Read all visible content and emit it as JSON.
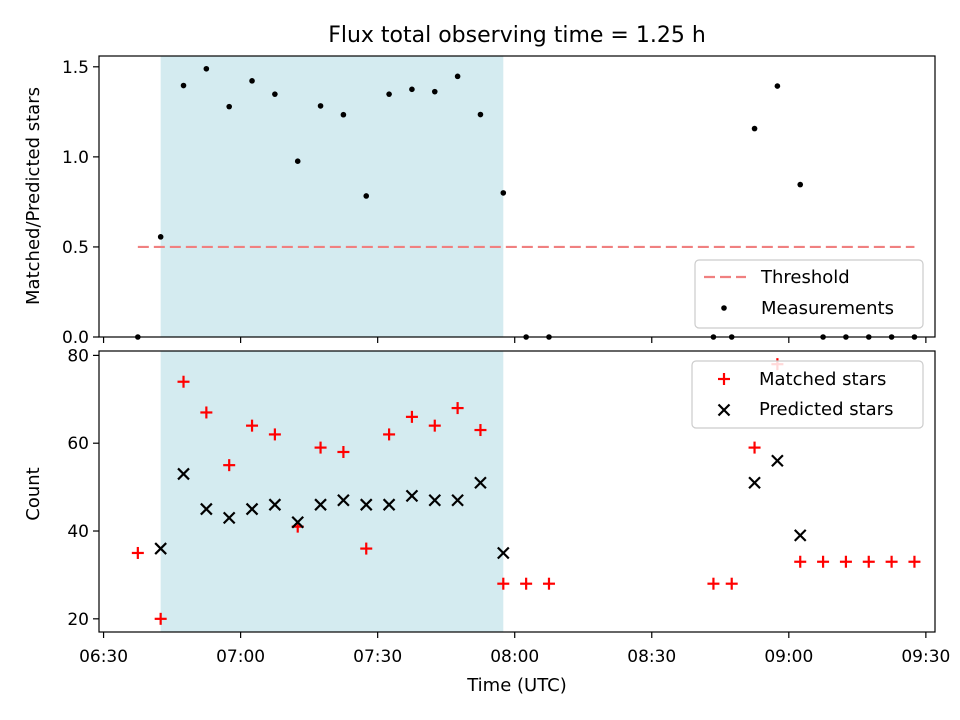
{
  "chart_data": [
    {
      "type": "scatter",
      "title": "Flux total observing time = 1.25 h",
      "xlabel": "",
      "ylabel": "Matched/Predicted stars",
      "xlim": [
        "06:29",
        "09:32"
      ],
      "ylim": [
        0,
        1.56
      ],
      "yticks": [
        0.0,
        0.5,
        1.0,
        1.5
      ],
      "ytick_labels": [
        "0.0",
        "0.5",
        "1.0",
        "1.5"
      ],
      "shaded_span": {
        "x0": "06:42:30",
        "x1": "07:57:30",
        "color": "#d4ebf0"
      },
      "threshold": {
        "label": "Threshold",
        "y": 0.5,
        "x0": "06:37:30",
        "x1": "09:27:30",
        "color": "#f08080"
      },
      "legend": {
        "position": "lower-right",
        "entries": [
          "Threshold",
          "Measurements"
        ]
      },
      "series": [
        {
          "name": "Measurements",
          "marker": "dot",
          "color": "#000000",
          "x": [
            "06:37:30",
            "06:42:30",
            "06:47:30",
            "06:52:30",
            "06:57:30",
            "07:02:30",
            "07:07:30",
            "07:12:30",
            "07:17:30",
            "07:22:30",
            "07:27:30",
            "07:32:30",
            "07:37:30",
            "07:42:30",
            "07:47:30",
            "07:52:30",
            "07:57:30",
            "08:02:30",
            "08:07:30",
            "08:43:30",
            "08:47:30",
            "08:52:30",
            "08:57:30",
            "09:02:30",
            "09:07:30",
            "09:12:30",
            "09:17:30",
            "09:22:30",
            "09:27:30"
          ],
          "y": [
            0.0,
            0.556,
            1.396,
            1.489,
            1.279,
            1.422,
            1.348,
            0.976,
            1.283,
            1.234,
            0.783,
            1.348,
            1.375,
            1.362,
            1.447,
            1.235,
            0.8,
            0.0,
            0.0,
            0.0,
            0.0,
            1.157,
            1.393,
            0.846,
            0.0,
            0.0,
            0.0,
            0.0,
            0.0
          ]
        }
      ]
    },
    {
      "type": "scatter",
      "title": "",
      "xlabel": "Time (UTC)",
      "ylabel": "Count",
      "xlim": [
        "06:29",
        "09:32"
      ],
      "ylim": [
        17,
        81
      ],
      "yticks": [
        20,
        40,
        60,
        80
      ],
      "ytick_labels": [
        "20",
        "40",
        "60",
        "80"
      ],
      "xticks": [
        "06:30",
        "07:00",
        "07:30",
        "08:00",
        "08:30",
        "09:00",
        "09:30"
      ],
      "xtick_labels": [
        "06:30",
        "07:00",
        "07:30",
        "08:00",
        "08:30",
        "09:00",
        "09:30"
      ],
      "shaded_span": {
        "x0": "06:42:30",
        "x1": "07:57:30",
        "color": "#d4ebf0"
      },
      "legend": {
        "position": "upper-right",
        "entries": [
          "Matched stars",
          "Predicted stars"
        ]
      },
      "series": [
        {
          "name": "Matched stars",
          "marker": "plus",
          "color": "#ff0000",
          "x": [
            "06:37:30",
            "06:42:30",
            "06:47:30",
            "06:52:30",
            "06:57:30",
            "07:02:30",
            "07:07:30",
            "07:12:30",
            "07:17:30",
            "07:22:30",
            "07:27:30",
            "07:32:30",
            "07:37:30",
            "07:42:30",
            "07:47:30",
            "07:52:30",
            "07:57:30",
            "08:02:30",
            "08:07:30",
            "08:43:30",
            "08:47:30",
            "08:52:30",
            "08:57:30",
            "09:02:30",
            "09:07:30",
            "09:12:30",
            "09:17:30",
            "09:22:30",
            "09:27:30"
          ],
          "y": [
            35,
            20,
            74,
            67,
            55,
            64,
            62,
            41,
            59,
            58,
            36,
            62,
            66,
            64,
            68,
            63,
            28,
            28,
            28,
            28,
            28,
            59,
            78,
            33,
            33,
            33,
            33,
            33,
            33
          ]
        },
        {
          "name": "Predicted stars",
          "marker": "x",
          "color": "#000000",
          "x": [
            "06:42:30",
            "06:47:30",
            "06:52:30",
            "06:57:30",
            "07:02:30",
            "07:07:30",
            "07:12:30",
            "07:17:30",
            "07:22:30",
            "07:27:30",
            "07:32:30",
            "07:37:30",
            "07:42:30",
            "07:47:30",
            "07:52:30",
            "07:57:30",
            "08:52:30",
            "08:57:30",
            "09:02:30"
          ],
          "y": [
            36,
            53,
            45,
            43,
            45,
            46,
            42,
            46,
            47,
            46,
            46,
            48,
            47,
            47,
            51,
            35,
            51,
            56,
            39
          ]
        }
      ]
    }
  ]
}
